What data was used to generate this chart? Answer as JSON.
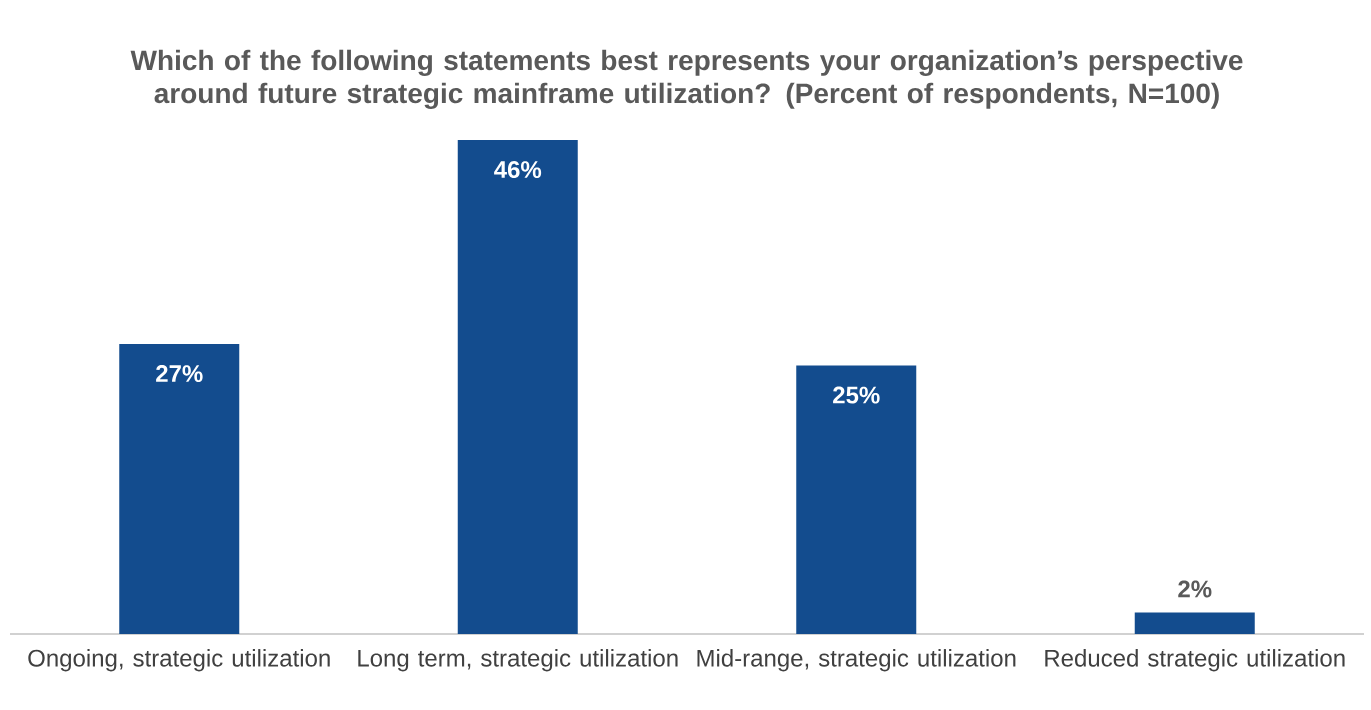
{
  "chart_data": {
    "type": "bar",
    "title": "Which of the following statements best represents your organization’s perspective around future strategic mainframe utilization? (Percent of respondents, N=100)",
    "categories": [
      "Ongoing, strategic utilization",
      "Long term, strategic utilization",
      "Mid-range, strategic utilization",
      "Reduced strategic utilization"
    ],
    "values": [
      27,
      46,
      25,
      2
    ],
    "value_labels": [
      "27%",
      "46%",
      "25%",
      "2%"
    ],
    "color": "#134c8e"
  }
}
